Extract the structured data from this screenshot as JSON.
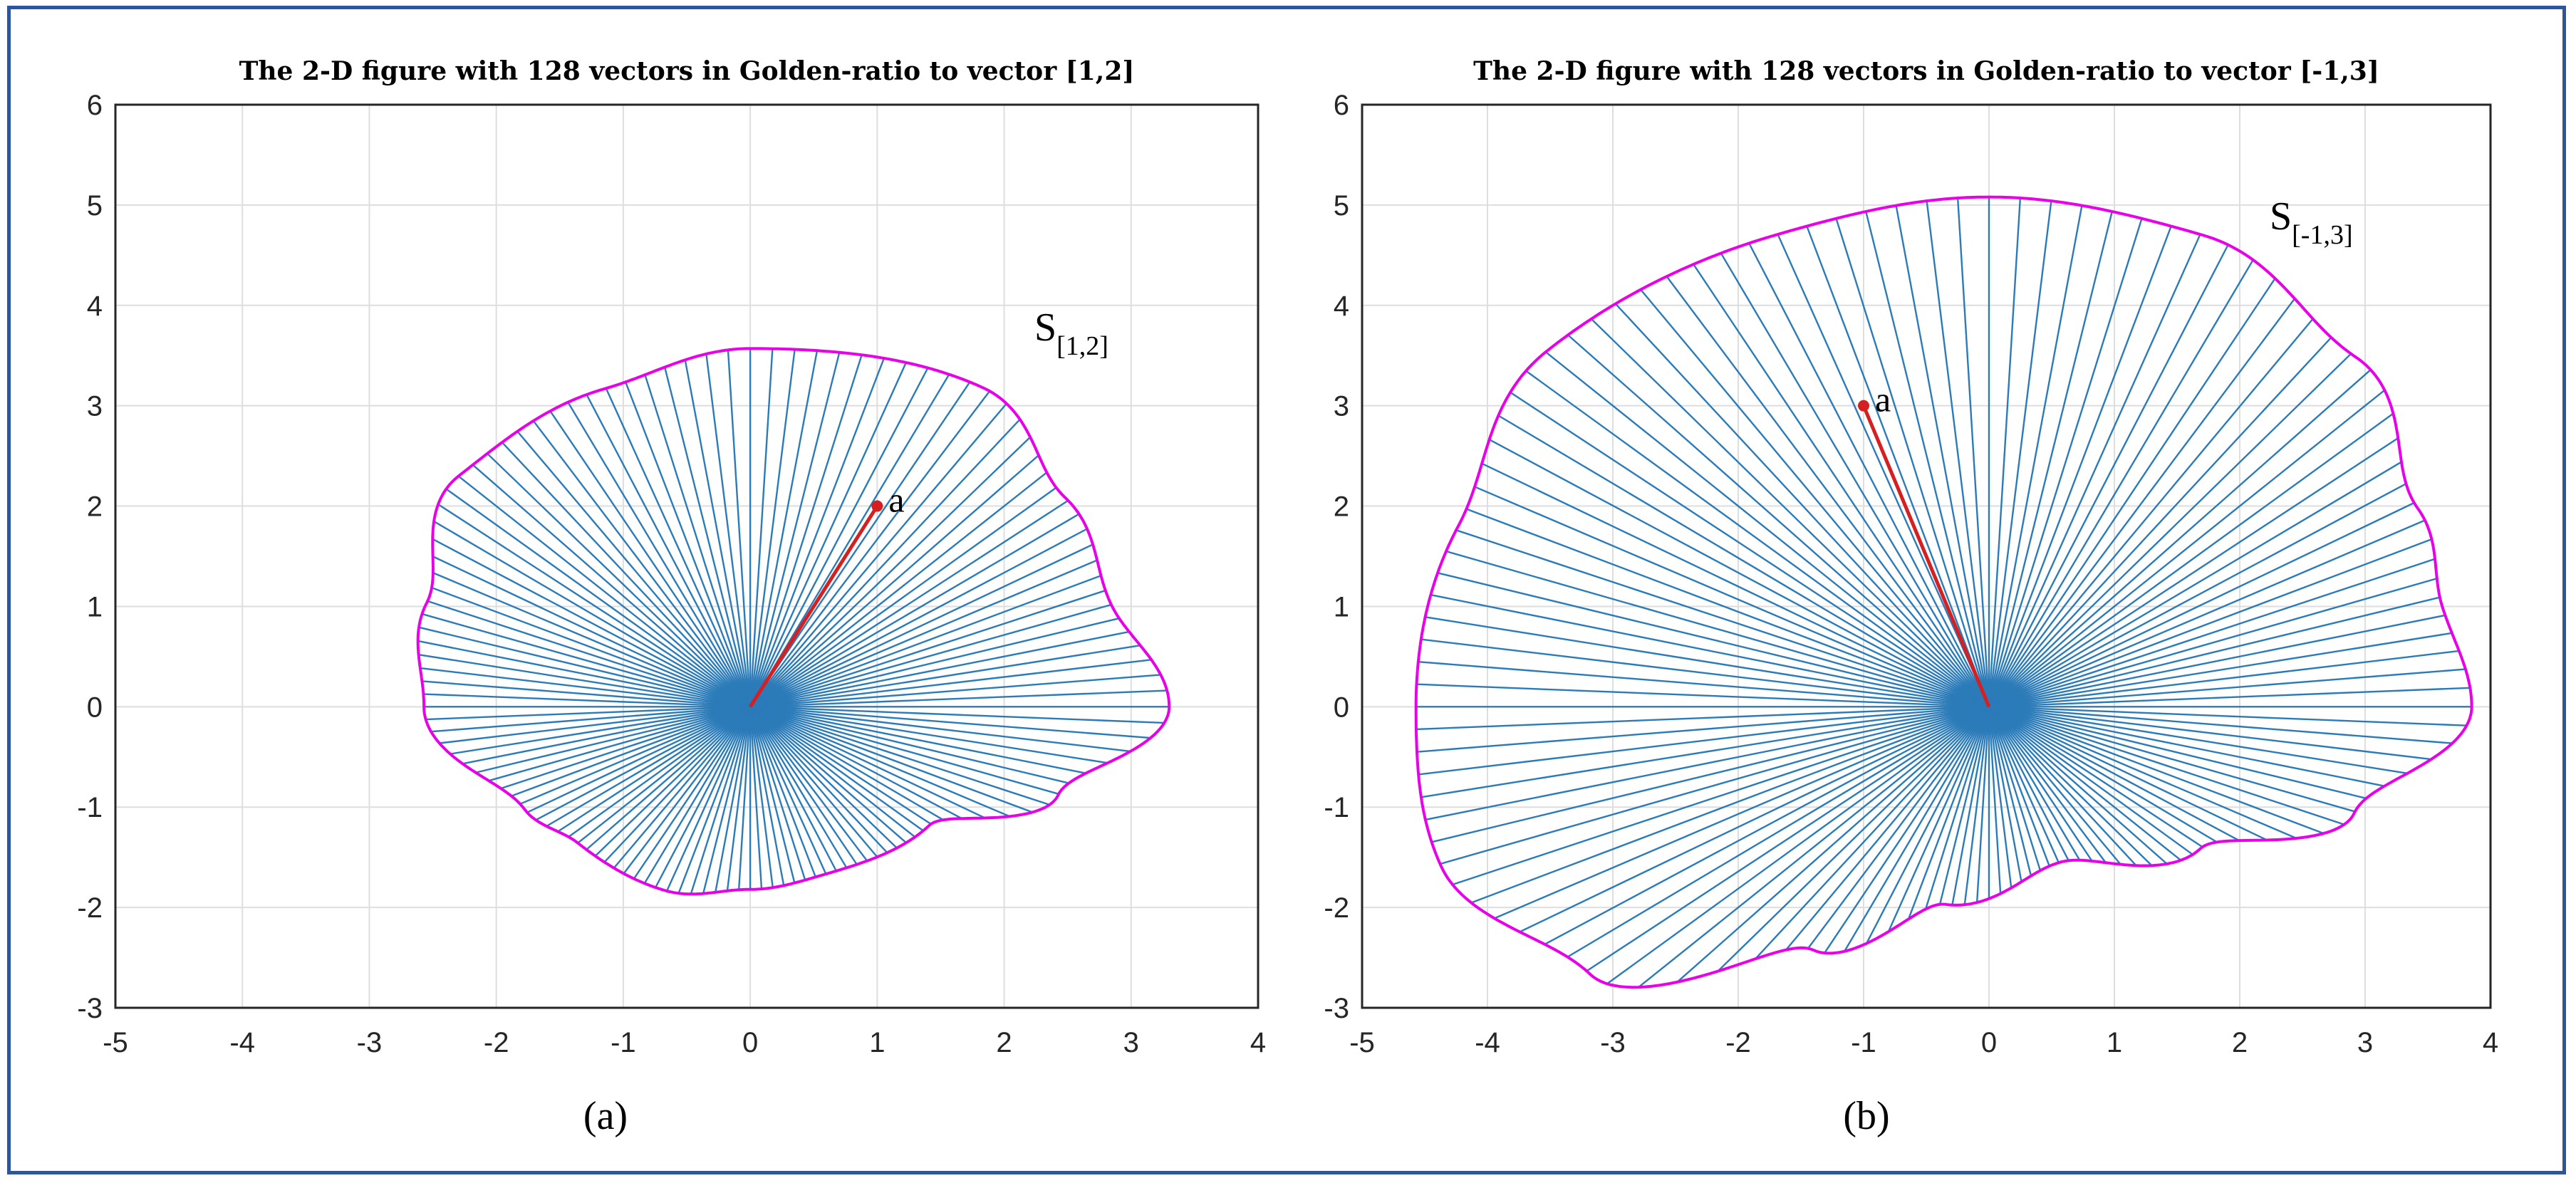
{
  "chart_data": [
    {
      "type": "line",
      "title": "The 2-D figure with 128 vectors in Golden-ratio to vector [1,2]",
      "caption": "(a)",
      "vector": [
        1,
        2
      ],
      "point_label": "a",
      "curve_label_main": "S",
      "curve_label_sub": "[1,2]",
      "num_vectors": 128,
      "xlim": [
        -5,
        4
      ],
      "ylim": [
        -3,
        6
      ],
      "xticks": [
        "-5",
        "-4",
        "-3",
        "-2",
        "-1",
        "0",
        "1",
        "2",
        "3",
        "4"
      ],
      "yticks": [
        "-3",
        "-2",
        "-1",
        "0",
        "1",
        "2",
        "3",
        "4",
        "5",
        "6"
      ],
      "grid": true,
      "boundary_samples": [
        [
          0,
          3.3
        ],
        [
          20,
          3.02
        ],
        [
          40,
          3.24
        ],
        [
          60,
          3.67
        ],
        [
          90,
          3.57
        ],
        [
          110,
          3.37
        ],
        [
          135,
          3.25
        ],
        [
          158,
          2.75
        ],
        [
          180,
          2.57
        ],
        [
          210,
          2.05
        ],
        [
          225,
          1.92
        ],
        [
          250,
          1.95
        ],
        [
          270,
          1.82
        ],
        [
          290,
          1.77
        ],
        [
          320,
          1.84
        ],
        [
          340,
          2.58
        ],
        [
          360,
          3.3
        ]
      ]
    },
    {
      "type": "line",
      "title": "The 2-D figure with 128 vectors in Golden-ratio to vector [-1,3]",
      "caption": "(b)",
      "vector": [
        -1,
        3
      ],
      "point_label": "a",
      "curve_label_main": "S",
      "curve_label_sub": "[-1,3]",
      "num_vectors": 128,
      "xlim": [
        -5,
        4
      ],
      "ylim": [
        -3,
        6
      ],
      "xticks": [
        "-5",
        "-4",
        "-3",
        "-2",
        "-1",
        "0",
        "1",
        "2",
        "3",
        "4"
      ],
      "yticks": [
        "-3",
        "-2",
        "-1",
        "0",
        "1",
        "2",
        "3",
        "4",
        "5",
        "6"
      ],
      "grid": true,
      "boundary_samples": [
        [
          0,
          3.85
        ],
        [
          15,
          3.75
        ],
        [
          30,
          3.95
        ],
        [
          50,
          4.55
        ],
        [
          70,
          5.0
        ],
        [
          90,
          5.08
        ],
        [
          110,
          5.0
        ],
        [
          135,
          5.0
        ],
        [
          157,
          4.6
        ],
        [
          180,
          4.57
        ],
        [
          200,
          4.65
        ],
        [
          220,
          4.15
        ],
        [
          240,
          2.8
        ],
        [
          260,
          2.0
        ],
        [
          290,
          1.65
        ],
        [
          320,
          2.2
        ],
        [
          340,
          3.1
        ],
        [
          360,
          3.85
        ]
      ]
    }
  ],
  "colors": {
    "rays": "#2b7bb9",
    "boundary": "#e800e8",
    "vector": "#d42020",
    "grid": "#dedede",
    "frame": "#2e5597"
  }
}
